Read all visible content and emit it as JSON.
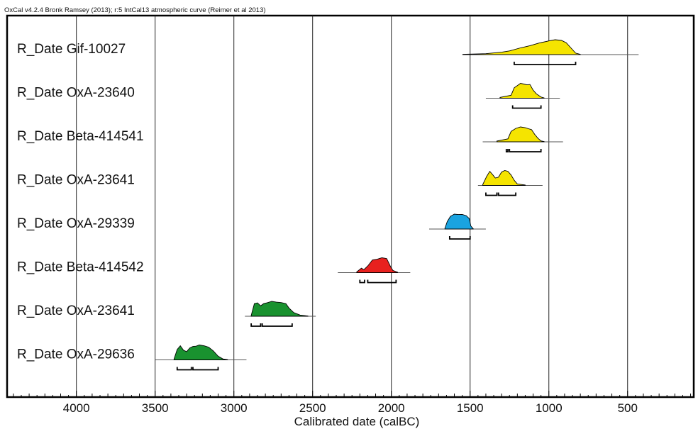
{
  "chart_data": {
    "type": "area",
    "header": "OxCal v4.2.4 Bronk Ramsey (2013); r:5 IntCal13 atmospheric curve (Reimer et al 2013)",
    "xlabel": "Calibrated date (calBC)",
    "xlim": [
      4440,
      80
    ],
    "ticks": [
      4000,
      3500,
      3000,
      2500,
      2000,
      1500,
      1000,
      500
    ],
    "grid": true,
    "series": [
      {
        "name": "R_Date Gif-10027",
        "color": "#f5e400",
        "dist": [
          [
            1545,
            0.02
          ],
          [
            1400,
            0.06
          ],
          [
            1300,
            0.16
          ],
          [
            1250,
            0.25
          ],
          [
            1180,
            0.45
          ],
          [
            1120,
            0.6
          ],
          [
            1060,
            0.78
          ],
          [
            1000,
            0.92
          ],
          [
            960,
            1.0
          ],
          [
            920,
            0.95
          ],
          [
            890,
            0.8
          ],
          [
            860,
            0.45
          ],
          [
            830,
            0.1
          ],
          [
            800,
            0.02
          ]
        ],
        "range_line": [
          1550,
          430
        ],
        "hpd": [
          [
            1220,
            830
          ]
        ]
      },
      {
        "name": "R_Date OxA-23640",
        "color": "#f5e400",
        "dist": [
          [
            1310,
            0.05
          ],
          [
            1240,
            0.2
          ],
          [
            1220,
            0.7
          ],
          [
            1200,
            0.85
          ],
          [
            1180,
            1.0
          ],
          [
            1160,
            0.95
          ],
          [
            1140,
            0.9
          ],
          [
            1120,
            0.92
          ],
          [
            1100,
            0.55
          ],
          [
            1080,
            0.3
          ],
          [
            1050,
            0.08
          ],
          [
            1030,
            0.02
          ]
        ],
        "range_line": [
          1400,
          930
        ],
        "hpd": [
          [
            1230,
            1050
          ]
        ]
      },
      {
        "name": "R_Date Beta-414541",
        "color": "#f5e400",
        "dist": [
          [
            1330,
            0.05
          ],
          [
            1260,
            0.2
          ],
          [
            1240,
            0.7
          ],
          [
            1210,
            0.9
          ],
          [
            1180,
            1.0
          ],
          [
            1150,
            0.95
          ],
          [
            1130,
            0.88
          ],
          [
            1110,
            0.82
          ],
          [
            1090,
            0.5
          ],
          [
            1070,
            0.25
          ],
          [
            1050,
            0.06
          ],
          [
            1030,
            0.02
          ]
        ],
        "range_line": [
          1420,
          910
        ],
        "hpd": [
          [
            1270,
            1260
          ],
          [
            1250,
            1050
          ]
        ]
      },
      {
        "name": "R_Date OxA-23641",
        "color": "#f5e400",
        "dist": [
          [
            1420,
            0.05
          ],
          [
            1395,
            0.6
          ],
          [
            1375,
            0.95
          ],
          [
            1355,
            0.7
          ],
          [
            1340,
            0.5
          ],
          [
            1320,
            0.55
          ],
          [
            1300,
            0.9
          ],
          [
            1280,
            1.0
          ],
          [
            1260,
            0.95
          ],
          [
            1240,
            0.7
          ],
          [
            1220,
            0.35
          ],
          [
            1200,
            0.1
          ],
          [
            1150,
            0.03
          ]
        ],
        "range_line": [
          1450,
          1040
        ],
        "hpd": [
          [
            1400,
            1330
          ],
          [
            1320,
            1210
          ]
        ]
      },
      {
        "name": "R_Date OxA-29339",
        "color": "#1aa3e0",
        "dist": [
          [
            1660,
            0.05
          ],
          [
            1645,
            0.5
          ],
          [
            1625,
            0.85
          ],
          [
            1600,
            1.0
          ],
          [
            1575,
            0.97
          ],
          [
            1550,
            0.98
          ],
          [
            1525,
            0.9
          ],
          [
            1505,
            0.7
          ],
          [
            1495,
            0.2
          ],
          [
            1480,
            0.02
          ]
        ],
        "range_line": [
          1760,
          1400
        ],
        "hpd": [
          [
            1630,
            1500
          ]
        ]
      },
      {
        "name": "R_Date Beta-414542",
        "color": "#e8211f",
        "dist": [
          [
            2220,
            0.05
          ],
          [
            2190,
            0.3
          ],
          [
            2175,
            0.2
          ],
          [
            2150,
            0.45
          ],
          [
            2120,
            0.85
          ],
          [
            2090,
            0.9
          ],
          [
            2060,
            1.0
          ],
          [
            2030,
            0.95
          ],
          [
            2005,
            0.4
          ],
          [
            1990,
            0.15
          ],
          [
            1960,
            0.03
          ]
        ],
        "range_line": [
          2340,
          1880
        ],
        "hpd": [
          [
            2200,
            2170
          ],
          [
            2150,
            1970
          ]
        ]
      },
      {
        "name": "R_Date OxA-23641",
        "color": "#19922f",
        "dist": [
          [
            2890,
            0.05
          ],
          [
            2870,
            0.85
          ],
          [
            2850,
            0.9
          ],
          [
            2830,
            0.7
          ],
          [
            2810,
            0.85
          ],
          [
            2790,
            0.9
          ],
          [
            2760,
            1.0
          ],
          [
            2730,
            0.95
          ],
          [
            2700,
            0.92
          ],
          [
            2670,
            0.85
          ],
          [
            2650,
            0.55
          ],
          [
            2620,
            0.25
          ],
          [
            2580,
            0.08
          ],
          [
            2530,
            0.02
          ]
        ],
        "range_line": [
          2930,
          2480
        ],
        "hpd": [
          [
            2890,
            2830
          ],
          [
            2820,
            2630
          ]
        ]
      },
      {
        "name": "R_Date OxA-29636",
        "color": "#19922f",
        "dist": [
          [
            3380,
            0.05
          ],
          [
            3360,
            0.7
          ],
          [
            3340,
            0.95
          ],
          [
            3320,
            0.65
          ],
          [
            3300,
            0.55
          ],
          [
            3280,
            0.8
          ],
          [
            3260,
            0.9
          ],
          [
            3240,
            0.92
          ],
          [
            3220,
            1.0
          ],
          [
            3190,
            0.95
          ],
          [
            3160,
            0.85
          ],
          [
            3130,
            0.6
          ],
          [
            3100,
            0.25
          ],
          [
            3070,
            0.06
          ],
          [
            3040,
            0.02
          ]
        ],
        "range_line": [
          3500,
          2920
        ],
        "hpd": [
          [
            3360,
            3270
          ],
          [
            3260,
            3100
          ]
        ]
      }
    ]
  }
}
